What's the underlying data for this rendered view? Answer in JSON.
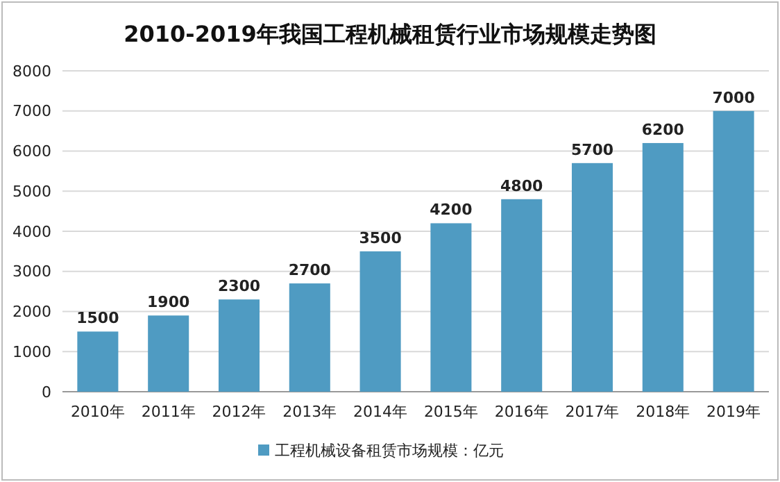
{
  "chart_data": {
    "type": "bar",
    "title": "2010-2019年我国工程机械租赁行业市场规模走势图",
    "categories": [
      "2010年",
      "2011年",
      "2012年",
      "2013年",
      "2014年",
      "2015年",
      "2016年",
      "2017年",
      "2018年",
      "2019年"
    ],
    "series": [
      {
        "name": "工程机械设备租赁市场规模：亿元",
        "color": "#4f9bc2",
        "values": [
          1500,
          1900,
          2300,
          2700,
          3500,
          4200,
          4800,
          5700,
          6200,
          7000
        ]
      }
    ],
    "ylim": [
      0,
      8000
    ],
    "yticks": [
      0,
      1000,
      2000,
      3000,
      4000,
      5000,
      6000,
      7000,
      8000
    ],
    "grid": "y",
    "legend": "bottom",
    "data_labels": true
  }
}
